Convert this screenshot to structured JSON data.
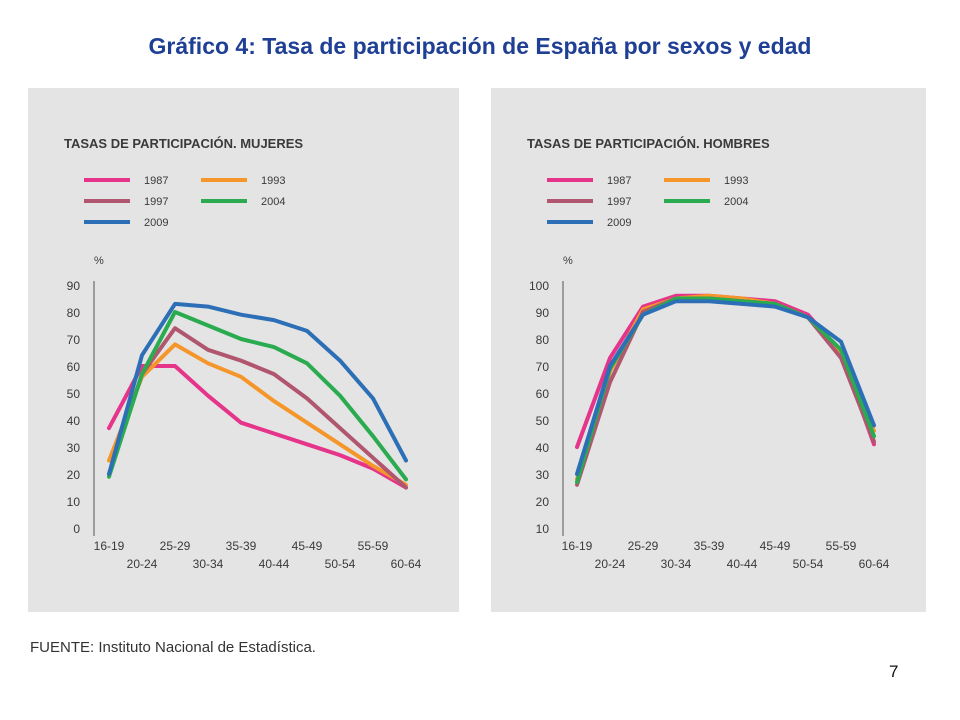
{
  "slide": {
    "title": "Gráfico 4: Tasa de participación de España por sexos y edad",
    "source": "FUENTE: Instituto Nacional de Estadística.",
    "page_number": "7"
  },
  "colors": {
    "1987": "#e5348a",
    "1993": "#f5962a",
    "1997": "#b0566f",
    "2004": "#2aab4f",
    "2009": "#2c6fb6",
    "axis": "#555555"
  },
  "chart_data": [
    {
      "type": "line",
      "title": "TASAS DE PARTICIPACIÓN. MUJERES",
      "ylabel": "%",
      "ylim": [
        0,
        90
      ],
      "yticks": [
        0,
        10,
        20,
        30,
        40,
        50,
        60,
        70,
        80,
        90
      ],
      "categories": [
        "16-19",
        "20-24",
        "25-29",
        "30-34",
        "35-39",
        "40-44",
        "45-49",
        "50-54",
        "55-59",
        "60-64"
      ],
      "series": [
        {
          "name": "1987",
          "values": [
            37,
            60,
            60,
            49,
            39,
            35,
            31,
            27,
            22,
            15
          ]
        },
        {
          "name": "1993",
          "values": [
            25,
            56,
            68,
            61,
            56,
            47,
            39,
            31,
            23,
            16
          ]
        },
        {
          "name": "1997",
          "values": [
            20,
            57,
            74,
            66,
            62,
            57,
            48,
            37,
            26,
            15
          ]
        },
        {
          "name": "2004",
          "values": [
            19,
            57,
            80,
            75,
            70,
            67,
            61,
            49,
            34,
            18
          ]
        },
        {
          "name": "2009",
          "values": [
            20,
            64,
            83,
            82,
            79,
            77,
            73,
            62,
            48,
            25
          ]
        }
      ]
    },
    {
      "type": "line",
      "title": "TASAS DE PARTICIPACIÓN. HOMBRES",
      "ylabel": "%",
      "ylim": [
        10,
        100
      ],
      "yticks": [
        10,
        20,
        30,
        40,
        50,
        60,
        70,
        80,
        90,
        100
      ],
      "categories": [
        "16-19",
        "20-24",
        "25-29",
        "30-34",
        "35-39",
        "40-44",
        "45-49",
        "50-54",
        "55-59",
        "60-64"
      ],
      "series": [
        {
          "name": "1987",
          "values": [
            40,
            73,
            92,
            96,
            96,
            95,
            94,
            89,
            75,
            41
          ]
        },
        {
          "name": "1993",
          "values": [
            28,
            68,
            91,
            95,
            96,
            95,
            93,
            88,
            74,
            46
          ]
        },
        {
          "name": "1997",
          "values": [
            26,
            64,
            90,
            95,
            95,
            94,
            93,
            88,
            73,
            42
          ]
        },
        {
          "name": "2004",
          "values": [
            27,
            69,
            89,
            95,
            95,
            94,
            93,
            88,
            76,
            44
          ]
        },
        {
          "name": "2009",
          "values": [
            30,
            70,
            89,
            94,
            94,
            93,
            92,
            88,
            79,
            48
          ]
        }
      ]
    }
  ]
}
